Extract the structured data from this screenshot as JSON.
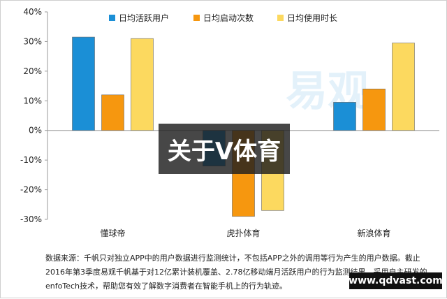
{
  "chart_data": {
    "type": "bar",
    "categories": [
      "懂球帝",
      "虎扑体育",
      "新浪体育"
    ],
    "series": [
      {
        "name": "日均活跃用户",
        "values": [
          31.5,
          -12,
          9.5
        ],
        "color": "#1b8fd6"
      },
      {
        "name": "日均启动次数",
        "values": [
          12,
          -29,
          14
        ],
        "color": "#f6970f"
      },
      {
        "name": "日均使用时长",
        "values": [
          31,
          -27,
          29.5
        ],
        "color": "#fcd95f"
      }
    ],
    "ylim": [
      -30,
      40
    ],
    "ytick_step": 10,
    "ytick_labels": [
      "40%",
      "30%",
      "20%",
      "10%",
      "0%",
      "-10%",
      "-20%",
      "-30%"
    ],
    "legend_position": "top",
    "grid": false,
    "title": "",
    "xlabel": "",
    "ylabel": ""
  },
  "source_note": "数据来源：千帆只对独立APP中的用户数据进行监测统计，不包括APP之外的调用等行为产生的用户数据。截止2016年第3季度易观千帆基于对12亿累计装机覆盖、2.78亿移动端月活跃用户的行为监测结果。采用自主研发的enfoTech技术，帮助您有效了解数字消费者在智能手机上的行为轨迹。",
  "overlay_title": "关于V体育",
  "watermark_url": "www.qdvast.com",
  "watermark_brand": "易观"
}
